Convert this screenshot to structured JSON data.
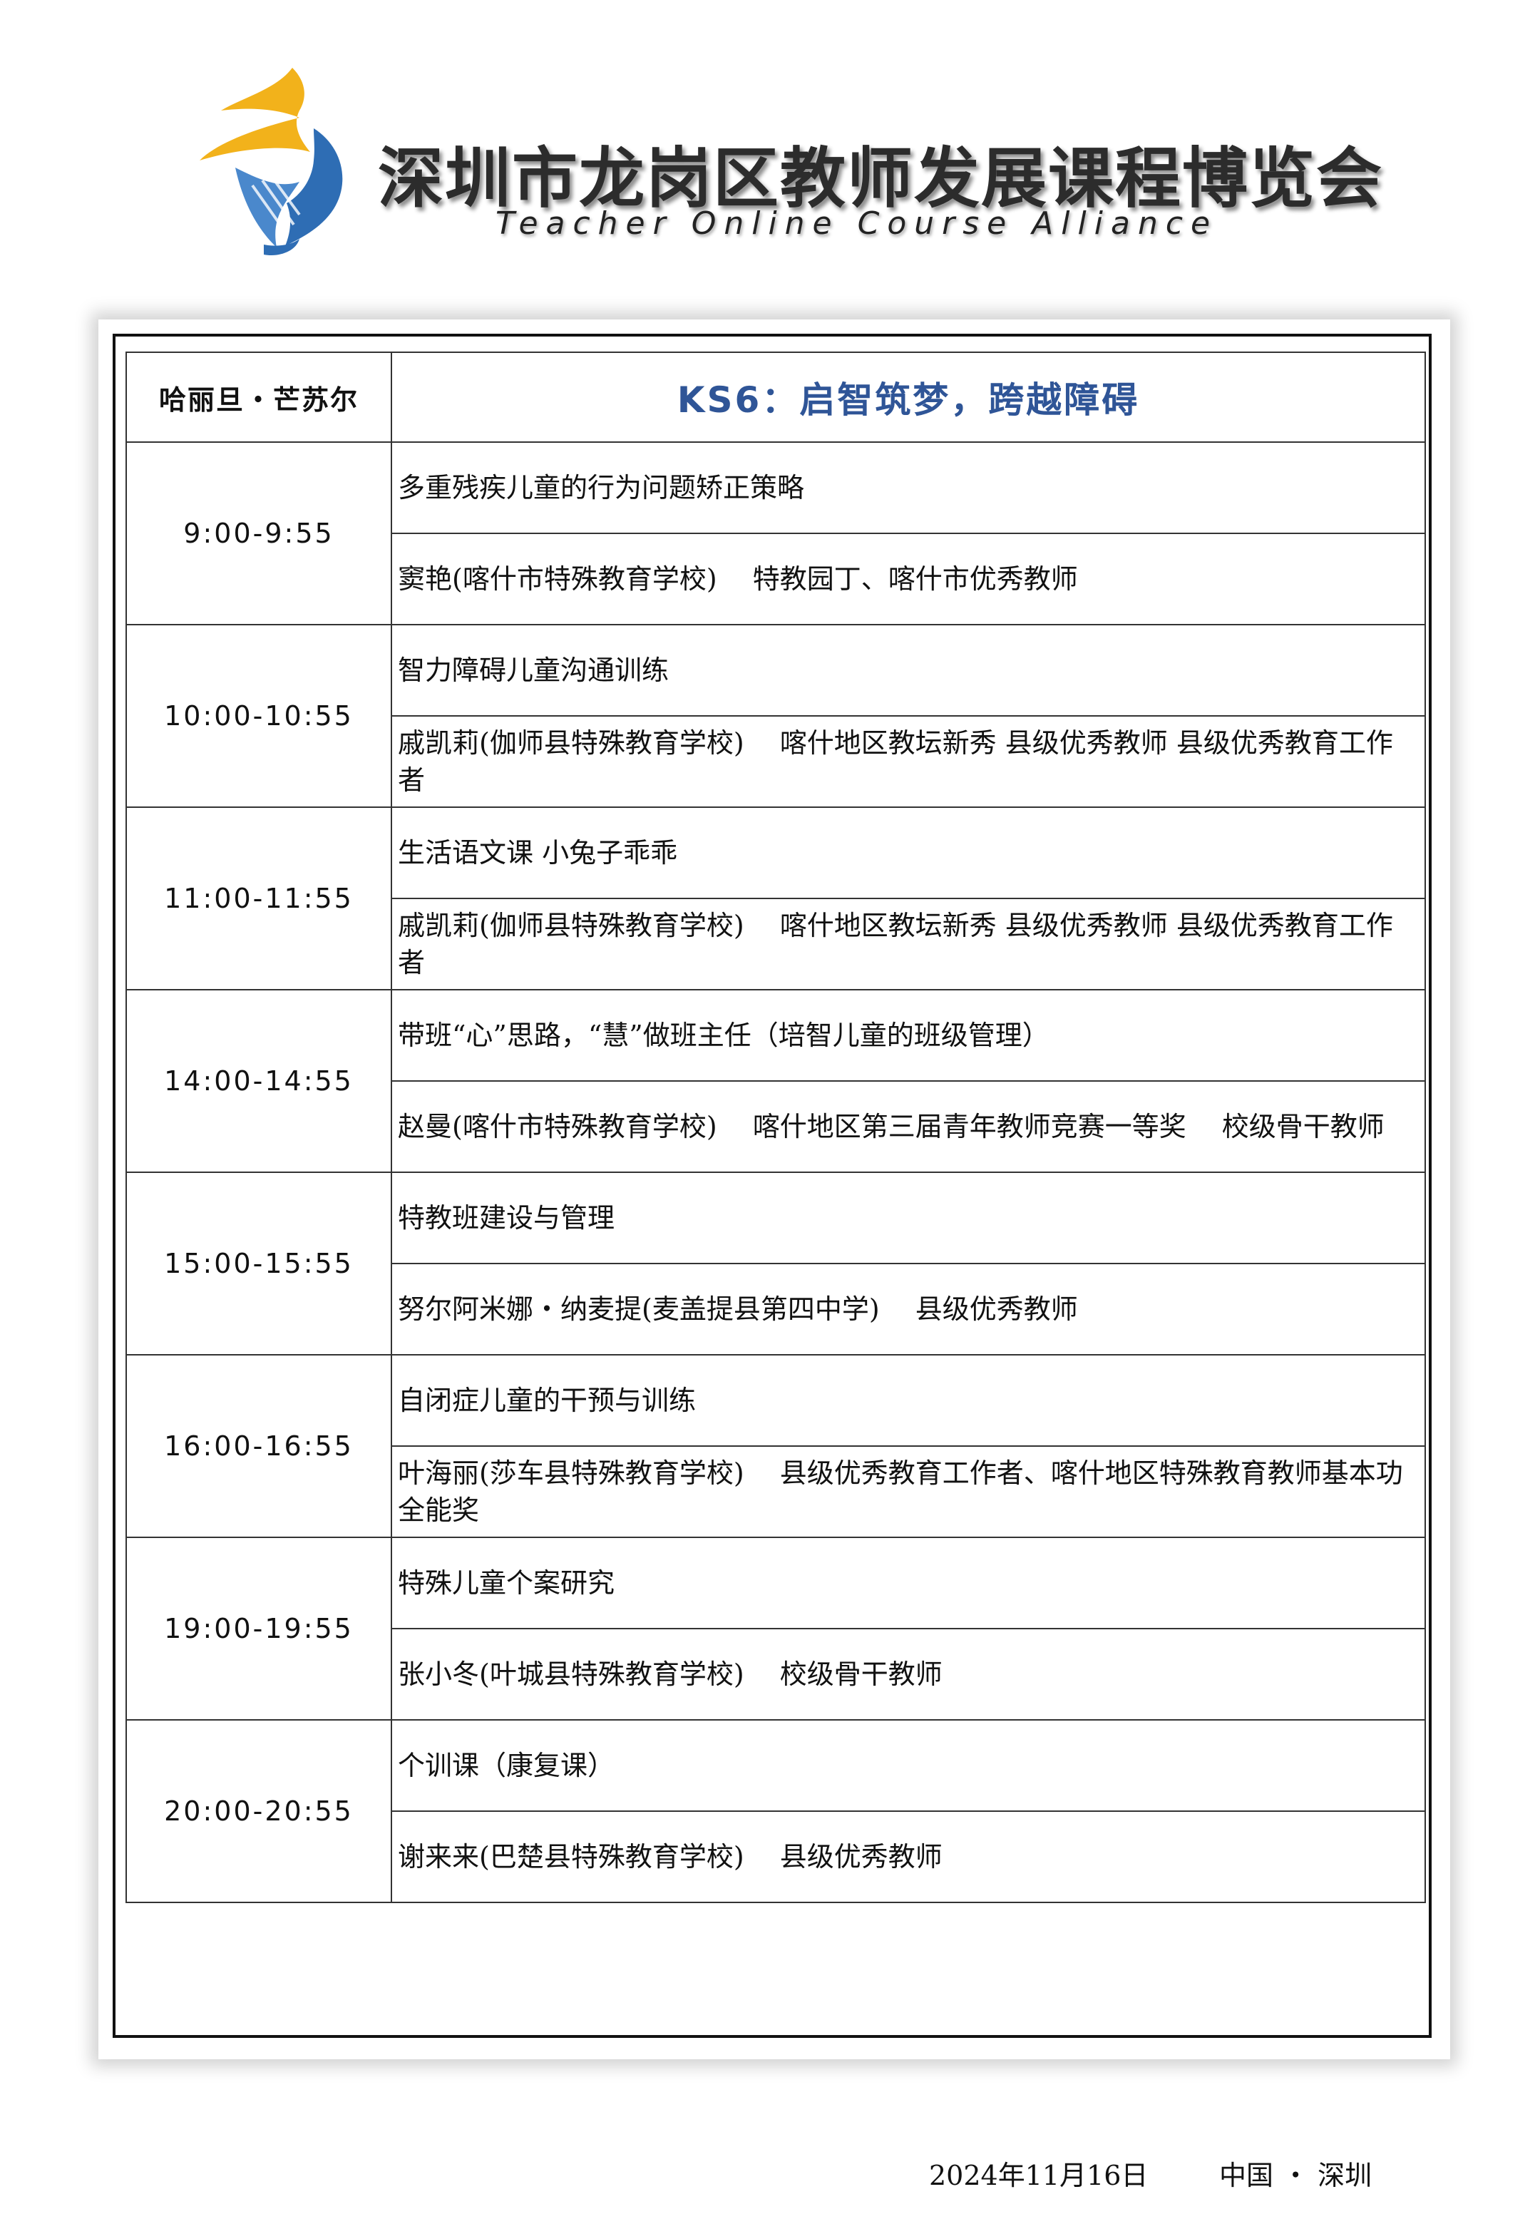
{
  "header": {
    "title": "深圳市龙岗区教师发展课程博览会",
    "subtitle": "Teacher Online Course Alliance",
    "logo_icon": "flame-swirl-logo",
    "colors": {
      "logo_yellow": "#f2b21b",
      "logo_blue": "#2e6db4",
      "session_title_blue": "#2f5597"
    }
  },
  "schedule": {
    "host": "哈丽旦・芒苏尔",
    "session_title": "KS6：启智筑梦，跨越障碍",
    "rows": [
      {
        "time": "9:00-9:55",
        "course": "多重残疾儿童的行为问题矫正策略",
        "speaker": "窦艳(喀什市特殊教育学校)　 特教园丁、喀什市优秀教师"
      },
      {
        "time": "10:00-10:55",
        "course": "智力障碍儿童沟通训练",
        "speaker": "戚凯莉(伽师县特殊教育学校)　 喀什地区教坛新秀 县级优秀教师 县级优秀教育工作者"
      },
      {
        "time": "11:00-11:55",
        "course": "生活语文课 小兔子乖乖",
        "speaker": "戚凯莉(伽师县特殊教育学校)　 喀什地区教坛新秀 县级优秀教师 县级优秀教育工作者"
      },
      {
        "time": "14:00-14:55",
        "course": "带班“心”思路，“慧”做班主任（培智儿童的班级管理）",
        "speaker": "赵曼(喀什市特殊教育学校)　 喀什地区第三届青年教师竞赛一等奖　 校级骨干教师"
      },
      {
        "time": "15:00-15:55",
        "course": "特教班建设与管理",
        "speaker": "努尔阿米娜・纳麦提(麦盖提县第四中学)　 县级优秀教师"
      },
      {
        "time": "16:00-16:55",
        "course": "自闭症儿童的干预与训练",
        "speaker": "叶海丽(莎车县特殊教育学校)　 县级优秀教育工作者、喀什地区特殊教育教师基本功全能奖"
      },
      {
        "time": "19:00-19:55",
        "course": "特殊儿童个案研究",
        "speaker": "张小冬(叶城县特殊教育学校)　 校级骨干教师"
      },
      {
        "time": "20:00-20:55",
        "course": "个训课（康复课）",
        "speaker": "谢来来(巴楚县特殊教育学校)　 县级优秀教师"
      }
    ]
  },
  "footer": {
    "date": "2024年11月16日",
    "place": "中国 ・ 深圳"
  }
}
